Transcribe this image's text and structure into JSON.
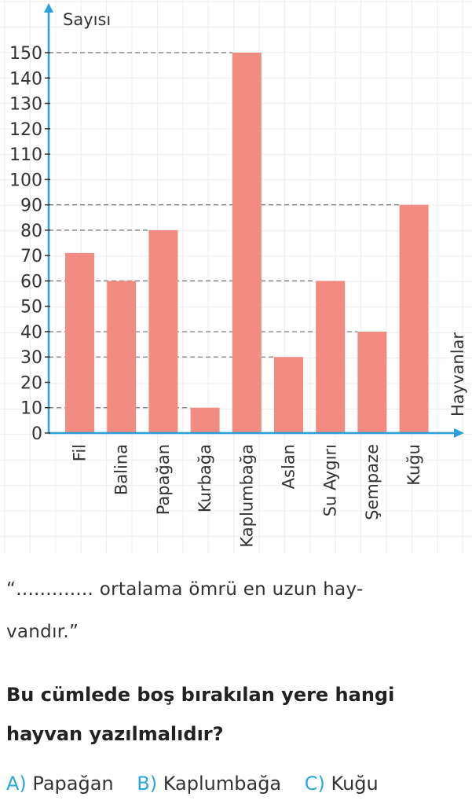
{
  "chart_data": {
    "type": "bar",
    "categories": [
      "Fil",
      "Balina",
      "Papağan",
      "Kurbağa",
      "Kaplumbağa",
      "Aslan",
      "Su Aygırı",
      "Şempaze",
      "Kuğu"
    ],
    "values": [
      71,
      60,
      80,
      10,
      150,
      30,
      60,
      40,
      90
    ],
    "ylabel": "Sayısı",
    "xlabel": "Hayvanlar",
    "ylim": [
      0,
      150
    ],
    "yticks": [
      0,
      10,
      20,
      30,
      40,
      50,
      60,
      70,
      80,
      90,
      100,
      110,
      120,
      130,
      140,
      150
    ],
    "reference_lines": [
      150,
      90,
      80,
      60,
      40,
      30,
      10
    ],
    "grid": true,
    "bar_color": "#f28b82",
    "axis_color": "#2a9fd8"
  },
  "text": {
    "quote_line1": "“............. ortalama ömrü en uzun hay-",
    "quote_line2": "vandır.”",
    "question_line1": "Bu cümlede boş bırakılan yere hangi",
    "question_line2": "hayvan yazılmalıdır?"
  },
  "options": [
    {
      "letter": "A)",
      "text": "Papağan"
    },
    {
      "letter": "B)",
      "text": "Kaplumbağa"
    },
    {
      "letter": "C)",
      "text": "Kuğu"
    }
  ]
}
